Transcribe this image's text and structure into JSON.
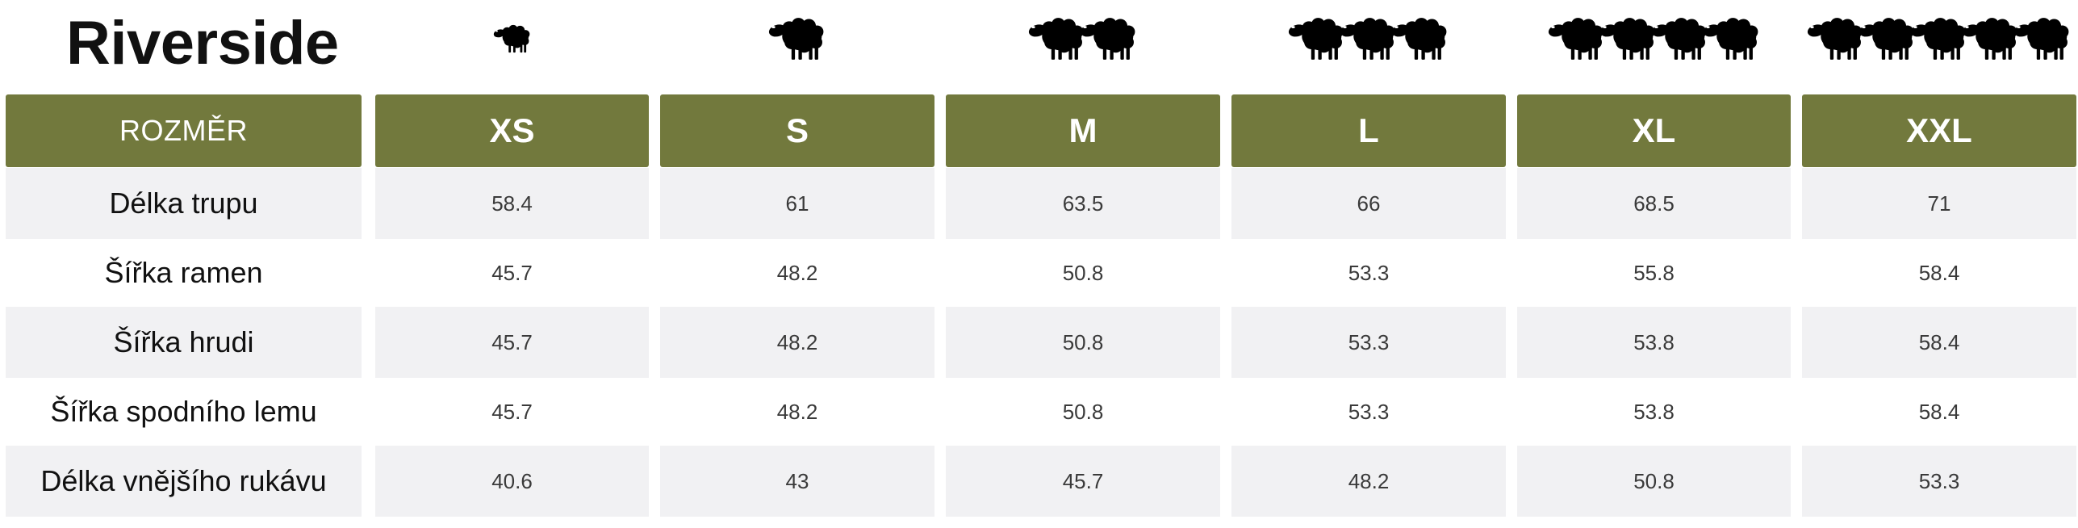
{
  "title": "Riverside",
  "header_label": "ROZMĚR",
  "sizes": [
    {
      "label": "XS",
      "sheep_count": 1
    },
    {
      "label": "S",
      "sheep_count": 1
    },
    {
      "label": "M",
      "sheep_count": 2
    },
    {
      "label": "L",
      "sheep_count": 3
    },
    {
      "label": "XL",
      "sheep_count": 4
    },
    {
      "label": "XXL",
      "sheep_count": 5
    }
  ],
  "icon": "sheep-icon",
  "colors": {
    "header_background": "#72793d",
    "header_text": "#ffffff",
    "row_shade": "#f1f1f3",
    "icon": "#000000"
  },
  "rows": [
    {
      "label": "Délka trupu",
      "values": [
        "58.4",
        "61",
        "63.5",
        "66",
        "68.5",
        "71"
      ]
    },
    {
      "label": "Šířka ramen",
      "values": [
        "45.7",
        "48.2",
        "50.8",
        "53.3",
        "55.8",
        "58.4"
      ]
    },
    {
      "label": "Šířka hrudi",
      "values": [
        "45.7",
        "48.2",
        "50.8",
        "53.3",
        "53.8",
        "58.4"
      ]
    },
    {
      "label": "Šířka spodního lemu",
      "values": [
        "45.7",
        "48.2",
        "50.8",
        "53.3",
        "53.8",
        "58.4"
      ]
    },
    {
      "label": "Délka vnějšího rukávu",
      "values": [
        "40.6",
        "43",
        "45.7",
        "48.2",
        "50.8",
        "53.3"
      ]
    }
  ]
}
